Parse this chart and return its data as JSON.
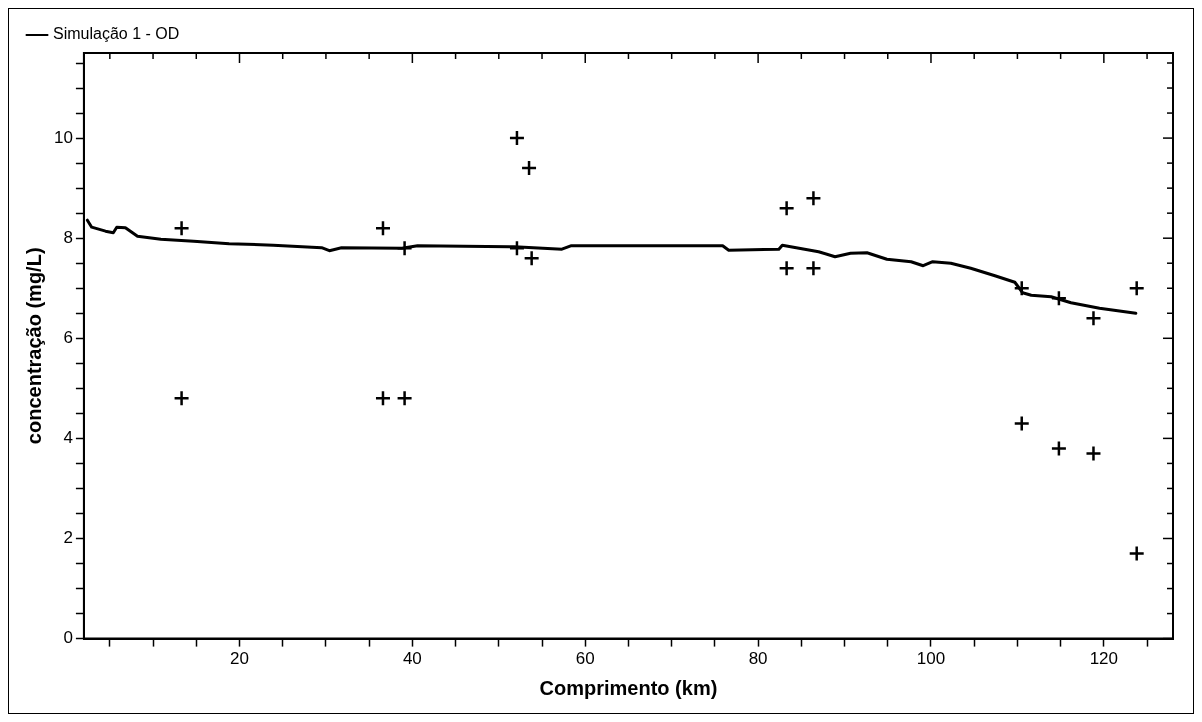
{
  "chart_data": {
    "type": "scatter",
    "xlabel": "Comprimento (km)",
    "ylabel": "concentração (mg/L)",
    "xlim": [
      2,
      128
    ],
    "xticks": [
      {
        "value": 5,
        "label": null
      },
      {
        "value": 10,
        "label": null
      },
      {
        "value": 15,
        "label": null
      },
      20,
      {
        "value": 25,
        "label": null
      },
      {
        "value": 30,
        "label": null
      },
      {
        "value": 35,
        "label": null
      },
      40,
      {
        "value": 45,
        "label": null
      },
      {
        "value": 50,
        "label": null
      },
      {
        "value": 55,
        "label": null
      },
      60,
      {
        "value": 65,
        "label": null
      },
      {
        "value": 70,
        "label": null
      },
      {
        "value": 75,
        "label": null
      },
      80,
      {
        "value": 85,
        "label": null
      },
      {
        "value": 90,
        "label": null
      },
      {
        "value": 95,
        "label": null
      },
      100,
      {
        "value": 105,
        "label": null
      },
      {
        "value": 110,
        "label": null
      },
      {
        "value": 115,
        "label": null
      },
      120,
      {
        "value": 125,
        "label": null
      }
    ],
    "ylim": [
      0,
      11.7
    ],
    "yticks": [
      0,
      {
        "value": 0.5,
        "label": null
      },
      {
        "value": 1,
        "label": null
      },
      {
        "value": 1.5,
        "label": null
      },
      2,
      {
        "value": 2.5,
        "label": null
      },
      {
        "value": 3,
        "label": null
      },
      {
        "value": 3.5,
        "label": null
      },
      4,
      {
        "value": 4.5,
        "label": null
      },
      {
        "value": 5,
        "label": null
      },
      {
        "value": 5.5,
        "label": null
      },
      6,
      {
        "value": 6.5,
        "label": null
      },
      {
        "value": 7,
        "label": null
      },
      {
        "value": 7.5,
        "label": null
      },
      8,
      {
        "value": 8.5,
        "label": null
      },
      {
        "value": 9,
        "label": null
      },
      {
        "value": 9.5,
        "label": null
      },
      10,
      {
        "value": 10.5,
        "label": null
      },
      {
        "value": 11,
        "label": null
      },
      {
        "value": 11.5,
        "label": null
      }
    ],
    "grid": false,
    "legend": "top left",
    "series": [
      {
        "name": "Simulação 1 - OD",
        "type": "line",
        "color": "#000000",
        "marker": "none",
        "line_style": "solid",
        "x": [
          2.4,
          2.9,
          4.5,
          5.4,
          5.8,
          6.8,
          8.2,
          10.9,
          14.7,
          18.8,
          23.9,
          29.5,
          30.4,
          31.8,
          38.8,
          40.6,
          51.8,
          57.3,
          58.4,
          75.9,
          76.6,
          82.4,
          82.8,
          87,
          88.9,
          90.7,
          92.6,
          94.9,
          97.7,
          99.1,
          100.2,
          102.3,
          104.6,
          107.4,
          109.7,
          110.6,
          111.6,
          113.9,
          116.2,
          119.5,
          123.7
        ],
        "values": [
          8.36,
          8.22,
          8.14,
          8.11,
          8.22,
          8.21,
          8.04,
          7.98,
          7.94,
          7.89,
          7.86,
          7.81,
          7.75,
          7.81,
          7.8,
          7.85,
          7.83,
          7.78,
          7.85,
          7.85,
          7.76,
          7.78,
          7.86,
          7.73,
          7.63,
          7.7,
          7.71,
          7.58,
          7.53,
          7.45,
          7.53,
          7.5,
          7.4,
          7.25,
          7.12,
          6.91,
          6.86,
          6.83,
          6.71,
          6.6,
          6.5
        ]
      },
      {
        "type": "scatter",
        "color": "#000000",
        "marker": "cross",
        "x": [
          13.3,
          13.3,
          36.6,
          36.6,
          39.1,
          39.1,
          52.1,
          52.1,
          53.5,
          53.8,
          83.3,
          83.3,
          86.4,
          86.4,
          110.5,
          110.5,
          114.8,
          114.8,
          118.8,
          118.8,
          123.8,
          123.8
        ],
        "values": [
          8.2,
          4.8,
          8.2,
          4.8,
          4.8,
          7.8,
          10.0,
          7.8,
          9.4,
          7.6,
          8.6,
          7.4,
          8.8,
          7.4,
          7.0,
          4.3,
          6.8,
          3.8,
          6.4,
          3.7,
          7.0,
          1.7
        ]
      }
    ]
  }
}
